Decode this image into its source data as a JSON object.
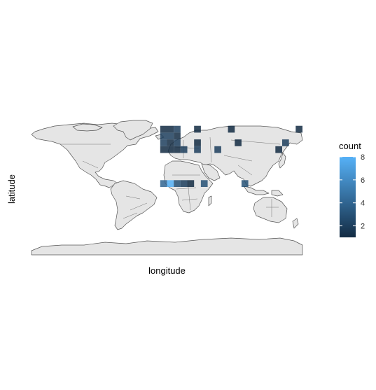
{
  "chart_data": {
    "type": "heatmap",
    "title": "",
    "xlabel": "longitude",
    "ylabel": "latitude",
    "xlim": [
      -180,
      180
    ],
    "ylim": [
      -90,
      90
    ],
    "grid": false,
    "background_map": "world",
    "bin_size_degrees": 9,
    "legend": {
      "title": "count",
      "placement": "right",
      "range": [
        1,
        8
      ],
      "ticks": [
        2,
        4,
        6,
        8
      ],
      "color_low": "#132b43",
      "color_high": "#56b1f7"
    },
    "cells": [
      {
        "lon": -4.5,
        "lat": 76.5,
        "count": 1
      },
      {
        "lon": 4.5,
        "lat": 76.5,
        "count": 1
      },
      {
        "lon": 13.5,
        "lat": 76.5,
        "count": 2
      },
      {
        "lon": 40.5,
        "lat": 76.5,
        "count": 1
      },
      {
        "lon": 85.5,
        "lat": 76.5,
        "count": 1
      },
      {
        "lon": 175.5,
        "lat": 76.5,
        "count": 1
      },
      {
        "lon": -4.5,
        "lat": 67.5,
        "count": 2
      },
      {
        "lon": 4.5,
        "lat": 67.5,
        "count": 2
      },
      {
        "lon": 13.5,
        "lat": 67.5,
        "count": 1
      },
      {
        "lon": -4.5,
        "lat": 58.5,
        "count": 2
      },
      {
        "lon": 4.5,
        "lat": 58.5,
        "count": 1
      },
      {
        "lon": 13.5,
        "lat": 58.5,
        "count": 2
      },
      {
        "lon": 40.5,
        "lat": 58.5,
        "count": 1
      },
      {
        "lon": 94.5,
        "lat": 58.5,
        "count": 1
      },
      {
        "lon": 157.5,
        "lat": 58.5,
        "count": 2
      },
      {
        "lon": -4.5,
        "lat": 49.5,
        "count": 1
      },
      {
        "lon": 4.5,
        "lat": 49.5,
        "count": 1
      },
      {
        "lon": 13.5,
        "lat": 49.5,
        "count": 1
      },
      {
        "lon": 22.5,
        "lat": 49.5,
        "count": 2
      },
      {
        "lon": 40.5,
        "lat": 49.5,
        "count": 2
      },
      {
        "lon": 67.5,
        "lat": 49.5,
        "count": 2
      },
      {
        "lon": 148.5,
        "lat": 49.5,
        "count": 1
      },
      {
        "lon": -4.5,
        "lat": 4.5,
        "count": 4
      },
      {
        "lon": 4.5,
        "lat": 4.5,
        "count": 8
      },
      {
        "lon": 13.5,
        "lat": 4.5,
        "count": 3
      },
      {
        "lon": 22.5,
        "lat": 4.5,
        "count": 2
      },
      {
        "lon": 31.5,
        "lat": 4.5,
        "count": 1
      },
      {
        "lon": 49.5,
        "lat": 4.5,
        "count": 3
      },
      {
        "lon": 103.5,
        "lat": 4.5,
        "count": 3
      }
    ]
  }
}
